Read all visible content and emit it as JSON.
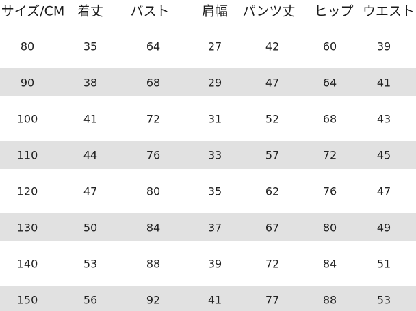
{
  "table": {
    "header": [
      "サイズ/CM",
      "着丈",
      "バスト",
      "肩幅",
      "パンツ丈",
      "ヒップ",
      "ウエスト"
    ],
    "rows": [
      [
        80,
        35,
        64,
        27,
        42,
        60,
        39
      ],
      [
        90,
        38,
        68,
        29,
        47,
        64,
        41
      ],
      [
        100,
        41,
        72,
        31,
        52,
        68,
        43
      ],
      [
        110,
        44,
        76,
        33,
        57,
        72,
        45
      ],
      [
        120,
        47,
        80,
        35,
        62,
        76,
        47
      ],
      [
        130,
        50,
        84,
        37,
        67,
        80,
        49
      ],
      [
        140,
        53,
        88,
        39,
        72,
        84,
        51
      ],
      [
        150,
        56,
        92,
        41,
        77,
        88,
        53
      ]
    ]
  }
}
